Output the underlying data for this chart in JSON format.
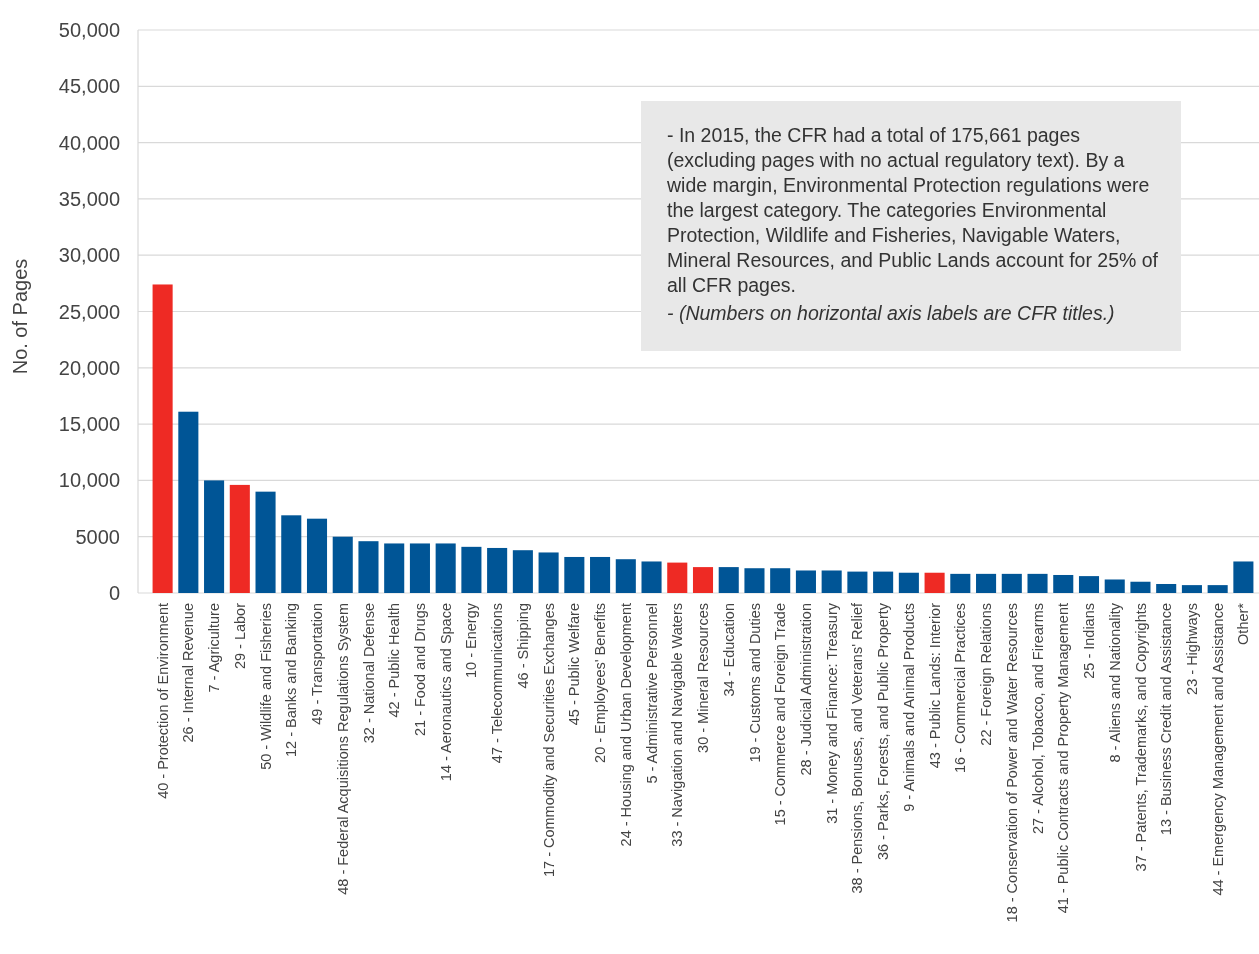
{
  "chart_data": {
    "type": "bar",
    "ylabel": "No. of Pages",
    "categories": [
      "40 - Protection of Environment",
      "26 - Internal Revenue",
      "7 - Agriculture",
      "29 - Labor",
      "50 - Wildlife and Fisheries",
      "12 - Banks and Banking",
      "49 - Transportation",
      "48 - Federal Acquisitions Regulations System",
      "32 - National Defense",
      "42 - Public Health",
      "21 - Food and Drugs",
      "14 - Aeronautics and Space",
      "10 - Energy",
      "47 - Telecommunications",
      "46 - Shipping",
      "17 - Commodity and Securities Exchanges",
      "45 - Public Welfare",
      "20 - Employees' Benefits",
      "24 - Housing and Urban Development",
      "5 - Administrative Personnel",
      "33 - Navigation and Navigable Waters",
      "30 - Mineral Resources",
      "34 - Education",
      "19 - Customs and Duties",
      "15 - Commerce and Foreign Trade",
      "28 - Judicial Administration",
      "31 - Money and Finance: Treasury",
      "38 - Pensions, Bonuses, and Veterans' Relief",
      "36 - Parks, Forests, and Public Property",
      "9 - Animals and Animal Products",
      "43 - Public Lands: Interior",
      "16 - Commercial Practices",
      "22 - Foreign Relations",
      "18 - Conservation of Power and Water Resources",
      "27 - Alcohol, Tobacco, and Firearms",
      "41 - Public Contracts and Property Management",
      "25 - Indians",
      "8 - Aliens and Nationality",
      "37 - Patents, Trademarks, and Copyrights",
      "13 - Business Credit and Assistance",
      "23 - Highways",
      "44 - Emergency Management and Assistance",
      "Other*"
    ],
    "values": [
      27400,
      16100,
      10000,
      9600,
      9000,
      6900,
      6600,
      5000,
      4600,
      4400,
      4400,
      4400,
      4100,
      4000,
      3800,
      3600,
      3200,
      3200,
      3000,
      2800,
      2700,
      2300,
      2300,
      2200,
      2200,
      2000,
      2000,
      1900,
      1900,
      1800,
      1800,
      1700,
      1700,
      1700,
      1700,
      1600,
      1500,
      1200,
      1000,
      800,
      700,
      700,
      2800
    ],
    "colors": [
      "#ee2a24",
      "#005596",
      "#005596",
      "#ee2a24",
      "#005596",
      "#005596",
      "#005596",
      "#005596",
      "#005596",
      "#005596",
      "#005596",
      "#005596",
      "#005596",
      "#005596",
      "#005596",
      "#005596",
      "#005596",
      "#005596",
      "#005596",
      "#005596",
      "#ee2a24",
      "#ee2a24",
      "#005596",
      "#005596",
      "#005596",
      "#005596",
      "#005596",
      "#005596",
      "#005596",
      "#005596",
      "#ee2a24",
      "#005596",
      "#005596",
      "#005596",
      "#005596",
      "#005596",
      "#005596",
      "#005596",
      "#005596",
      "#005596",
      "#005596",
      "#005596",
      "#005596"
    ],
    "ylim": [
      0,
      50000
    ],
    "yticks": [
      {
        "value": 50000,
        "label": "50,000"
      },
      {
        "value": 45000,
        "label": "45,000"
      },
      {
        "value": 40000,
        "label": "40,000"
      },
      {
        "value": 35000,
        "label": "35,000"
      },
      {
        "value": 30000,
        "label": "30,000"
      },
      {
        "value": 25000,
        "label": "25,000"
      },
      {
        "value": 20000,
        "label": "20,000"
      },
      {
        "value": 15000,
        "label": "15,000"
      },
      {
        "value": 10000,
        "label": "10,000"
      },
      5000,
      0
    ],
    "grid": "y",
    "annotations": [
      "- In 2015, the CFR had a total of 175,661 pages (excluding pages with no actual regulatory text). By a wide margin, Environmental Protection regulations were the largest category. The categories Environmental Protection, Wildlife and Fisheries, Navigable Waters, Mineral Resources, and Public Lands account for 25% of all CFR pages.",
      "- (Numbers on horizontal axis labels are CFR titles.)"
    ]
  }
}
